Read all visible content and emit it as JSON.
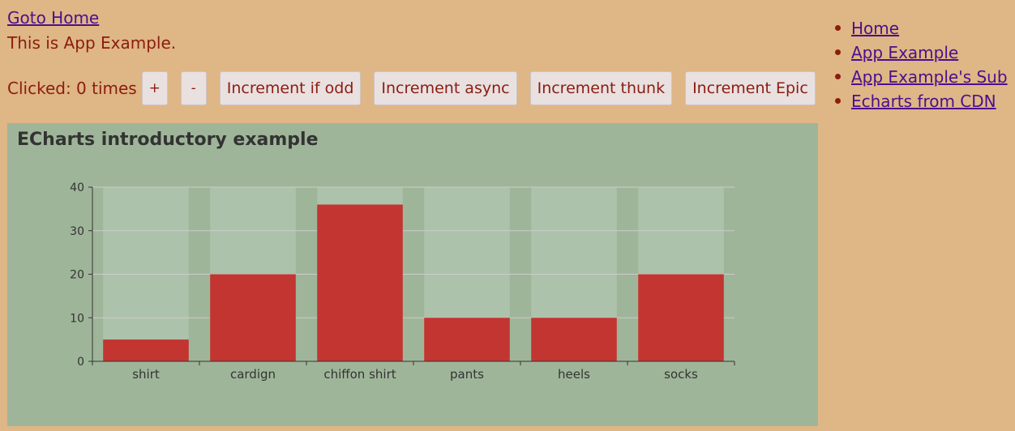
{
  "header": {
    "home_link": "Goto Home",
    "description": "This is App Example."
  },
  "counter": {
    "text": "Clicked: 0 times",
    "buttons": {
      "plus": "+",
      "minus": "-",
      "increment_if_odd": "Increment if odd",
      "increment_async": "Increment async",
      "increment_thunk": "Increment thunk",
      "increment_epic": "Increment Epic"
    }
  },
  "nav": {
    "items": [
      "Home",
      "App Example",
      "App Example's Sub",
      "Echarts from CDN"
    ]
  },
  "colors": {
    "page_background": "#DFB685",
    "chart_background": "#9FB599",
    "bar_color": "#C23531",
    "bar_background": "#ADC2AA",
    "text_color": "#8B1C10",
    "link_color": "#4B0F8C"
  },
  "chart_data": {
    "type": "bar",
    "title": "ECharts introductory example",
    "categories": [
      "shirt",
      "cardign",
      "chiffon shirt",
      "pants",
      "heels",
      "socks"
    ],
    "values": [
      5,
      20,
      36,
      10,
      10,
      20
    ],
    "ylim": [
      0,
      40
    ],
    "yticks": [
      0,
      10,
      20,
      30,
      40
    ],
    "grid": true,
    "show_background": true
  }
}
